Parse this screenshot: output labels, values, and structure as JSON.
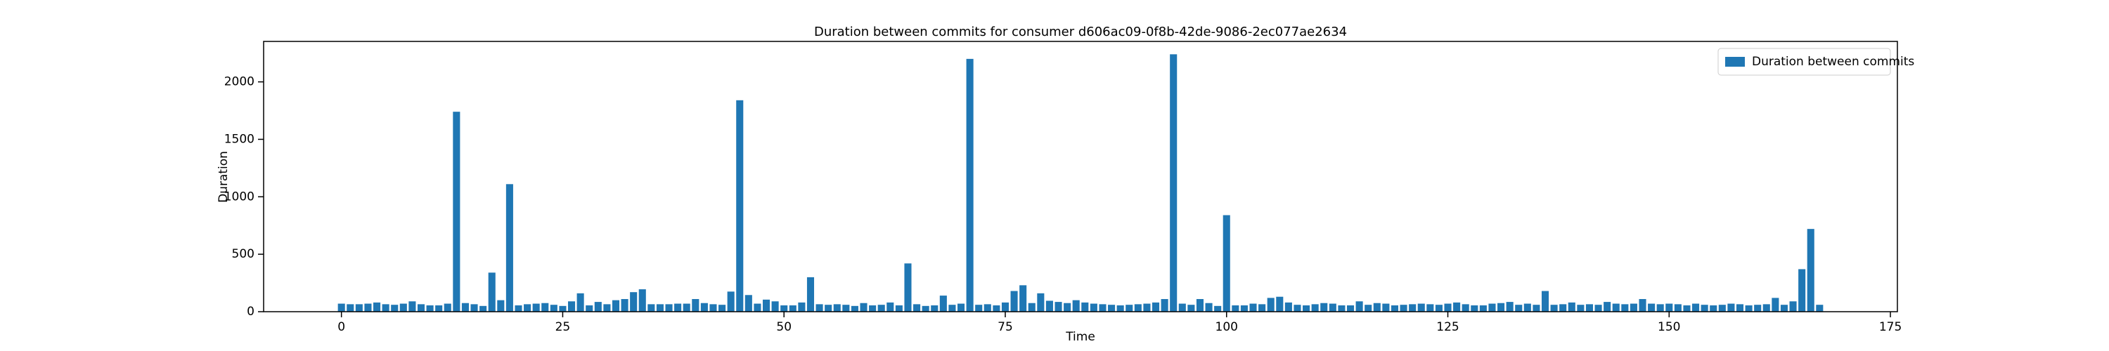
{
  "chart_data": {
    "type": "bar",
    "title": "Duration between commits for consumer d606ac09-0f8b-42de-9086-2ec077ae2634",
    "x_label": "Time",
    "y_label": "Duration",
    "x": [
      0,
      1,
      2,
      3,
      4,
      5,
      6,
      7,
      8,
      9,
      10,
      11,
      12,
      13,
      14,
      15,
      16,
      17,
      18,
      19,
      20,
      21,
      22,
      23,
      24,
      25,
      26,
      27,
      28,
      29,
      30,
      31,
      32,
      33,
      34,
      35,
      36,
      37,
      38,
      39,
      40,
      41,
      42,
      43,
      44,
      45,
      46,
      47,
      48,
      49,
      50,
      51,
      52,
      53,
      54,
      55,
      56,
      57,
      58,
      59,
      60,
      61,
      62,
      63,
      64,
      65,
      66,
      67,
      68,
      69,
      70,
      71,
      72,
      73,
      74,
      75,
      76,
      77,
      78,
      79,
      80,
      81,
      82,
      83,
      84,
      85,
      86,
      87,
      88,
      89,
      90,
      91,
      92,
      93,
      94,
      95,
      96,
      97,
      98,
      99,
      100,
      101,
      102,
      103,
      104,
      105,
      106,
      107,
      108,
      109,
      110,
      111,
      112,
      113,
      114,
      115,
      116,
      117,
      118,
      119,
      120,
      121,
      122,
      123,
      124,
      125,
      126,
      127,
      128,
      129,
      130,
      131,
      132,
      133,
      134,
      135,
      136,
      137,
      138,
      139,
      140,
      141,
      142,
      143,
      144,
      145,
      146,
      147,
      148,
      149,
      150,
      151,
      152,
      153,
      154,
      155,
      156,
      157,
      158,
      159,
      160,
      161,
      162,
      163,
      164,
      165,
      166,
      167
    ],
    "series": [
      {
        "name": "Duration between commits",
        "color": "#1f77b4",
        "values": [
          70,
          65,
          65,
          70,
          80,
          65,
          60,
          70,
          90,
          65,
          55,
          55,
          70,
          1740,
          75,
          65,
          50,
          340,
          100,
          1110,
          55,
          65,
          70,
          75,
          60,
          50,
          90,
          160,
          55,
          85,
          65,
          100,
          110,
          170,
          195,
          65,
          65,
          65,
          70,
          70,
          110,
          75,
          65,
          60,
          175,
          1840,
          145,
          70,
          105,
          90,
          55,
          55,
          80,
          300,
          65,
          60,
          65,
          60,
          50,
          75,
          55,
          60,
          80,
          55,
          420,
          65,
          50,
          55,
          140,
          60,
          70,
          2200,
          60,
          65,
          55,
          80,
          180,
          230,
          75,
          160,
          95,
          85,
          75,
          100,
          80,
          70,
          65,
          60,
          55,
          60,
          65,
          70,
          80,
          110,
          2240,
          70,
          60,
          110,
          75,
          50,
          840,
          55,
          55,
          70,
          65,
          120,
          130,
          80,
          60,
          55,
          65,
          75,
          70,
          55,
          55,
          90,
          60,
          75,
          70,
          55,
          60,
          65,
          70,
          65,
          60,
          70,
          80,
          65,
          55,
          55,
          70,
          75,
          85,
          60,
          70,
          60,
          180,
          60,
          65,
          80,
          60,
          65,
          60,
          85,
          70,
          65,
          70,
          110,
          70,
          65,
          70,
          65,
          55,
          70,
          60,
          55,
          60,
          70,
          65,
          55,
          60,
          65,
          120,
          60,
          90,
          370,
          720,
          60
        ]
      }
    ],
    "xlim": [
      -8.79,
      175.79
    ],
    "xticks": [
      0,
      25,
      50,
      75,
      100,
      125,
      150,
      175
    ],
    "ylim": [
      0,
      2352
    ],
    "yticks": [
      0,
      500,
      1000,
      1500,
      2000
    ],
    "bar_width": 0.8,
    "grid": false,
    "legend": "upper right"
  }
}
